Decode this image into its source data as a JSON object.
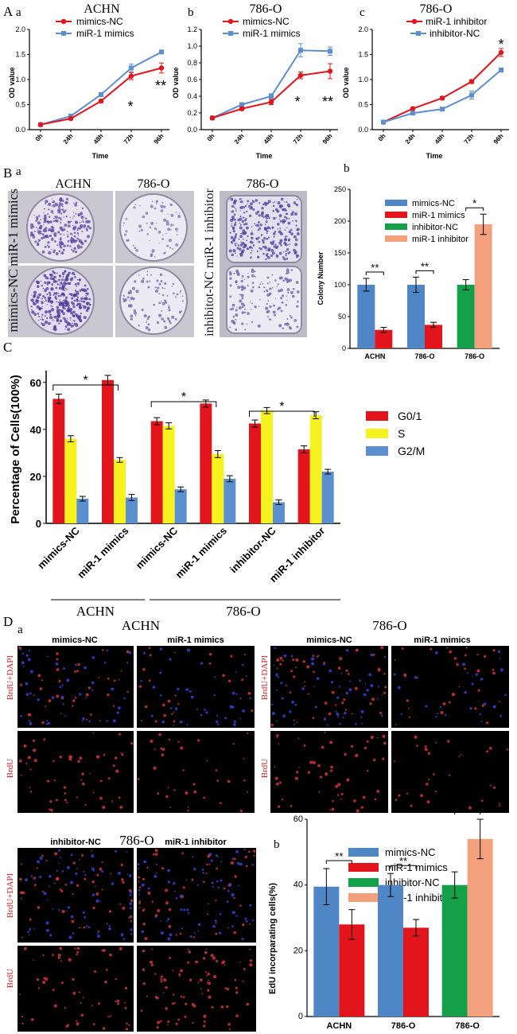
{
  "panel_letters": {
    "A": "A",
    "B": "B",
    "C": "C",
    "D": "D"
  },
  "colors": {
    "mimics_nc": "#4f86c6",
    "mir1_mimics": "#e3151c",
    "inhibitor_nc": "#13a048",
    "mir1_inhibitor": "#f3a07c",
    "g01": "#e3151c",
    "s": "#f6f21f",
    "g2m": "#5b8fcf",
    "line_red": "#e3151c",
    "line_blue": "#5b8fcf"
  },
  "panel_A": {
    "subpanels": [
      {
        "sub": "a",
        "title": "ACHN",
        "ylabel": "OD value",
        "xlabel": "Time",
        "legend": [
          "mimics-NC",
          "miR-1 mimics"
        ],
        "sig": [
          "*",
          "**"
        ]
      },
      {
        "sub": "b",
        "title": "786-O",
        "ylabel": "OD value",
        "xlabel": "Time",
        "legend": [
          "mimics-NC",
          "miR-1 mimics"
        ],
        "sig": [
          "*",
          "**"
        ]
      },
      {
        "sub": "c",
        "title": "786-O",
        "ylabel": "OD value",
        "xlabel": "Time",
        "legend": [
          "miR-1 inhibitor",
          "inhibitor-NC"
        ],
        "sig": [
          "*"
        ]
      }
    ]
  },
  "panel_B": {
    "a_label": "a",
    "b_label": "b",
    "photo_headers": [
      "ACHN",
      "786-O",
      "786-O"
    ],
    "row_labels_left": [
      "miR-1 mimics",
      "mimics-NC"
    ],
    "row_label_right": "inhibitot-NC miR-1 inhibitor",
    "legend": [
      "mimics-NC",
      "miR-1 mimics",
      "inhibitor-NC",
      "miR-1 inhibitor"
    ]
  },
  "panel_D": {
    "a_label": "a",
    "b_label": "b",
    "achn_title": "ACHN",
    "o786_title": "786-O",
    "o786_inh_title": "786-O",
    "col_labels": [
      "mimics-NC",
      "miR-1 mimics",
      "mimics-NC",
      "miR-1 mimics"
    ],
    "inh_col_labels": [
      "inhibitor-NC",
      "miR-1 inhibitor"
    ],
    "row_labels": [
      "BrdU+DAPI",
      "BrdU"
    ],
    "legend": [
      "mimics-NC",
      "miR-1 mimics",
      "inhibitor-NC",
      "miR-1 inhibitor"
    ]
  },
  "chart_data": [
    {
      "id": "A-a",
      "type": "line",
      "title": "ACHN",
      "xlabel": "Time",
      "ylabel": "OD value",
      "x": [
        "0h",
        "24h",
        "48h",
        "72h",
        "96h"
      ],
      "ylim": [
        0,
        2.0
      ],
      "yticks": [
        "0.0",
        "0.5",
        "1.0",
        "1.5",
        "2.0"
      ],
      "series": [
        {
          "name": "mimics-NC",
          "values": [
            0.1,
            0.27,
            0.7,
            1.23,
            1.55
          ],
          "err": [
            0.01,
            0.02,
            0.04,
            0.08,
            0.02
          ]
        },
        {
          "name": "miR-1 mimics",
          "values": [
            0.1,
            0.22,
            0.57,
            1.07,
            1.23
          ],
          "err": [
            0.01,
            0.02,
            0.03,
            0.07,
            0.1
          ]
        }
      ]
    },
    {
      "id": "A-b",
      "type": "line",
      "title": "786-O",
      "xlabel": "Time",
      "ylabel": "OD value",
      "x": [
        "0h",
        "24h",
        "48h",
        "72h",
        "96h"
      ],
      "ylim": [
        0,
        1.2
      ],
      "yticks": [
        "0.0",
        "0.2",
        "0.4",
        "0.6",
        "0.8",
        "1.0",
        "1.2"
      ],
      "series": [
        {
          "name": "mimics-NC",
          "values": [
            0.14,
            0.3,
            0.4,
            0.95,
            0.94
          ],
          "err": [
            0.01,
            0.02,
            0.03,
            0.08,
            0.05
          ]
        },
        {
          "name": "miR-1 mimics",
          "values": [
            0.14,
            0.25,
            0.33,
            0.65,
            0.7
          ],
          "err": [
            0.01,
            0.02,
            0.03,
            0.04,
            0.09
          ]
        }
      ]
    },
    {
      "id": "A-c",
      "type": "line",
      "title": "786-O",
      "xlabel": "Time",
      "ylabel": "OD value",
      "x": [
        "0h",
        "24h",
        "48h",
        "72h",
        "96h"
      ],
      "ylim": [
        0,
        2.0
      ],
      "yticks": [
        "0.0",
        "0.5",
        "1.0",
        "1.5",
        "2.0"
      ],
      "series": [
        {
          "name": "miR-1 inhibitor",
          "values": [
            0.15,
            0.42,
            0.63,
            0.96,
            1.54
          ],
          "err": [
            0.01,
            0.02,
            0.03,
            0.04,
            0.08
          ]
        },
        {
          "name": "inhibitor-NC",
          "values": [
            0.15,
            0.33,
            0.41,
            0.69,
            1.19
          ],
          "err": [
            0.01,
            0.02,
            0.03,
            0.08,
            0.04
          ]
        }
      ]
    },
    {
      "id": "B-b",
      "type": "bar",
      "ylabel": "Colony Number",
      "categories": [
        "ACHN",
        "786-O",
        "786-O"
      ],
      "ylim": [
        0,
        250
      ],
      "yticks": [
        "0",
        "50",
        "100",
        "150",
        "200",
        "250"
      ],
      "bars": [
        {
          "group": 0,
          "series": "mimics-NC",
          "value": 100,
          "err": 10
        },
        {
          "group": 0,
          "series": "miR-1 mimics",
          "value": 29,
          "err": 4
        },
        {
          "group": 1,
          "series": "mimics-NC",
          "value": 100,
          "err": 12
        },
        {
          "group": 1,
          "series": "miR-1 mimics",
          "value": 37,
          "err": 4
        },
        {
          "group": 2,
          "series": "inhibitor-NC",
          "value": 100,
          "err": 8
        },
        {
          "group": 2,
          "series": "miR-1 inhibitor",
          "value": 195,
          "err": 16
        }
      ],
      "sig": [
        "**",
        "**",
        "*"
      ]
    },
    {
      "id": "C",
      "type": "bar",
      "ylabel": "Percentage of Cells(100%)",
      "categories": [
        "mimics-NC",
        "miR-1 mimics",
        "mimics-NC",
        "miR-1 mimics",
        "inhibitor-NC",
        "miR-1 inhibitor"
      ],
      "group_labels": [
        "ACHN",
        "786-O"
      ],
      "ylim": [
        0,
        65
      ],
      "yticks": [
        "0",
        "20",
        "40",
        "60"
      ],
      "series": [
        {
          "name": "G0/1",
          "values": [
            53,
            61,
            43.5,
            51,
            42.5,
            31.5
          ],
          "err": [
            2,
            2,
            1.5,
            1.5,
            1.5,
            1.5
          ]
        },
        {
          "name": "S",
          "values": [
            36,
            27,
            41.5,
            29.5,
            48,
            46
          ],
          "err": [
            1.3,
            1,
            1.3,
            1.5,
            1.3,
            1.5
          ]
        },
        {
          "name": "G2/M",
          "values": [
            10.5,
            11,
            14.5,
            19,
            9,
            22
          ],
          "err": [
            1,
            1.3,
            1,
            1.3,
            1,
            1
          ]
        }
      ],
      "sig": [
        "*",
        "*",
        "*"
      ]
    },
    {
      "id": "D-b",
      "type": "bar",
      "ylabel": "EdU incorparating cells(%)",
      "categories": [
        "ACHN",
        "786-O",
        "786-O"
      ],
      "ylim": [
        0,
        60
      ],
      "yticks": [
        "0",
        "20",
        "40",
        "60"
      ],
      "bars": [
        {
          "group": 0,
          "series": "mimics-NC",
          "value": 39.5,
          "err": 5.5
        },
        {
          "group": 0,
          "series": "miR-1 mimics",
          "value": 28,
          "err": 4.5
        },
        {
          "group": 1,
          "series": "mimics-NC",
          "value": 40,
          "err": 3.5
        },
        {
          "group": 1,
          "series": "miR-1 mimics",
          "value": 27,
          "err": 2.5
        },
        {
          "group": 2,
          "series": "inhibitor-NC",
          "value": 40,
          "err": 4
        },
        {
          "group": 2,
          "series": "miR-1 inhibitor",
          "value": 54,
          "err": 6
        }
      ],
      "sig": [
        "**",
        "**",
        "*"
      ]
    }
  ]
}
